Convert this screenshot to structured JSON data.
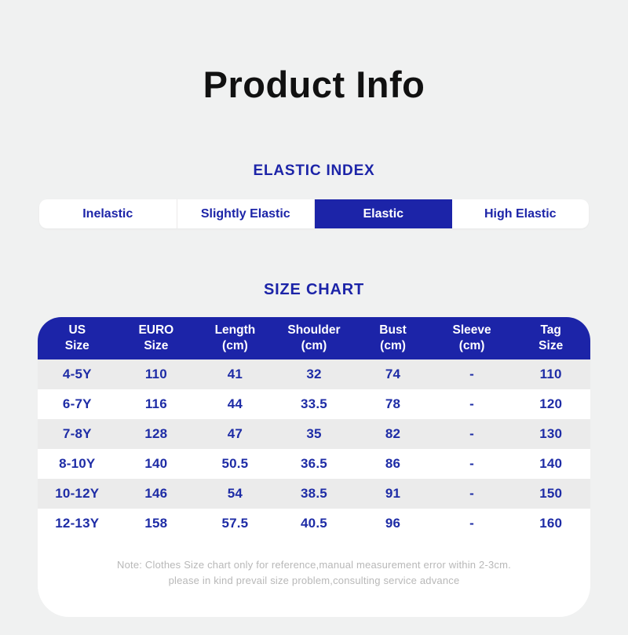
{
  "page": {
    "title": "Product Info"
  },
  "elastic_index": {
    "heading": "ELASTIC INDEX",
    "options": [
      {
        "label": "Inelastic",
        "selected": false
      },
      {
        "label": "Slightly Elastic",
        "selected": false
      },
      {
        "label": "Elastic",
        "selected": true
      },
      {
        "label": "High Elastic",
        "selected": false
      }
    ]
  },
  "size_chart": {
    "heading": "SIZE CHART",
    "columns": [
      "US\nSize",
      "EURO\nSize",
      "Length\n(cm)",
      "Shoulder\n(cm)",
      "Bust\n(cm)",
      "Sleeve\n(cm)",
      "Tag\nSize"
    ],
    "rows": [
      [
        "4-5Y",
        "110",
        "41",
        "32",
        "74",
        "-",
        "110"
      ],
      [
        "6-7Y",
        "116",
        "44",
        "33.5",
        "78",
        "-",
        "120"
      ],
      [
        "7-8Y",
        "128",
        "47",
        "35",
        "82",
        "-",
        "130"
      ],
      [
        "8-10Y",
        "140",
        "50.5",
        "36.5",
        "86",
        "-",
        "140"
      ],
      [
        "10-12Y",
        "146",
        "54",
        "38.5",
        "91",
        "-",
        "150"
      ],
      [
        "12-13Y",
        "158",
        "57.5",
        "40.5",
        "96",
        "-",
        "160"
      ]
    ]
  },
  "note": {
    "line1": "Note: Clothes Size chart only for reference,manual measurement error within 2-3cm.",
    "line2": "please in kind prevail size problem,consulting service advance"
  },
  "colors": {
    "accent_blue": "#1c24a8",
    "cell_text_blue": "#1e2ca6",
    "row_alt_gray": "#ebebeb",
    "page_background": "#f0f1f1",
    "note_gray": "#b8b8b8",
    "title_black": "#111111"
  }
}
